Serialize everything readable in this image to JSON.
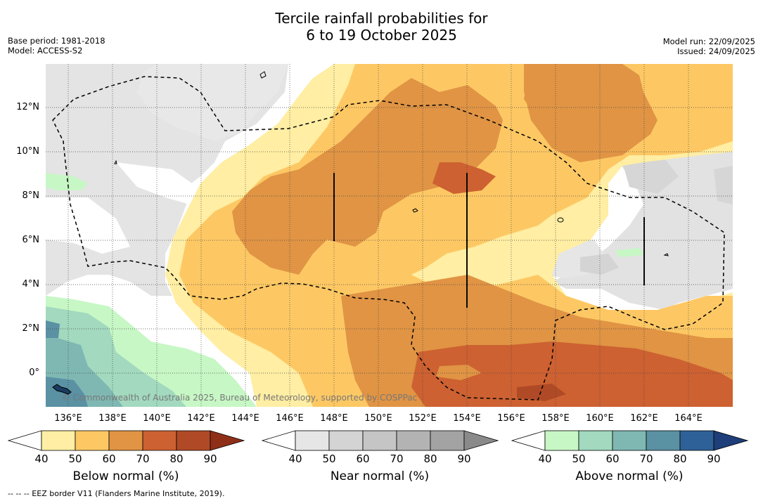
{
  "title_line1": "Tercile rainfall probabilities for",
  "title_line2": "6 to 19 October 2025",
  "meta_left": [
    "Base period: 1981-2018",
    "Model: ACCESS-S2"
  ],
  "meta_right": [
    "Model run: 22/09/2025",
    "Issued: 24/09/2025"
  ],
  "x_ticks": [
    "136°E",
    "138°E",
    "140°E",
    "142°E",
    "144°E",
    "146°E",
    "148°E",
    "150°E",
    "152°E",
    "154°E",
    "156°E",
    "158°E",
    "160°E",
    "162°E",
    "164°E"
  ],
  "y_ticks": [
    "12°N",
    "10°N",
    "8°N",
    "6°N",
    "4°N",
    "2°N",
    "0°"
  ],
  "copyright": "© Commonwealth of Australia 2025, Bureau of Meteorology, supported by COSPPac",
  "colorbars": [
    {
      "label": "Below normal (%)",
      "ticks": [
        "40",
        "50",
        "60",
        "70",
        "80",
        "90"
      ],
      "colors": [
        "#ffeea3",
        "#fdc864",
        "#e09444",
        "#cd6131",
        "#b04a26"
      ],
      "under": "#ffffff",
      "over": "#8f2f17"
    },
    {
      "label": "Near normal (%)",
      "ticks": [
        "40",
        "50",
        "60",
        "70",
        "80",
        "90"
      ],
      "colors": [
        "#e6e6e6",
        "#d4d4d4",
        "#c5c5c5",
        "#b3b3b3",
        "#a3a3a3"
      ],
      "under": "#ffffff",
      "over": "#8a8a8a"
    },
    {
      "label": "Above normal (%)",
      "ticks": [
        "40",
        "50",
        "60",
        "70",
        "80",
        "90"
      ],
      "colors": [
        "#c7f7c5",
        "#a2d9bf",
        "#7fb8b2",
        "#5a91a3",
        "#2e6197"
      ],
      "under": "#ffffff",
      "over": "#1d3e78"
    }
  ],
  "footnote": "--  --  -- EEZ border V11 (Flanders Marine Institute, 2019)."
}
